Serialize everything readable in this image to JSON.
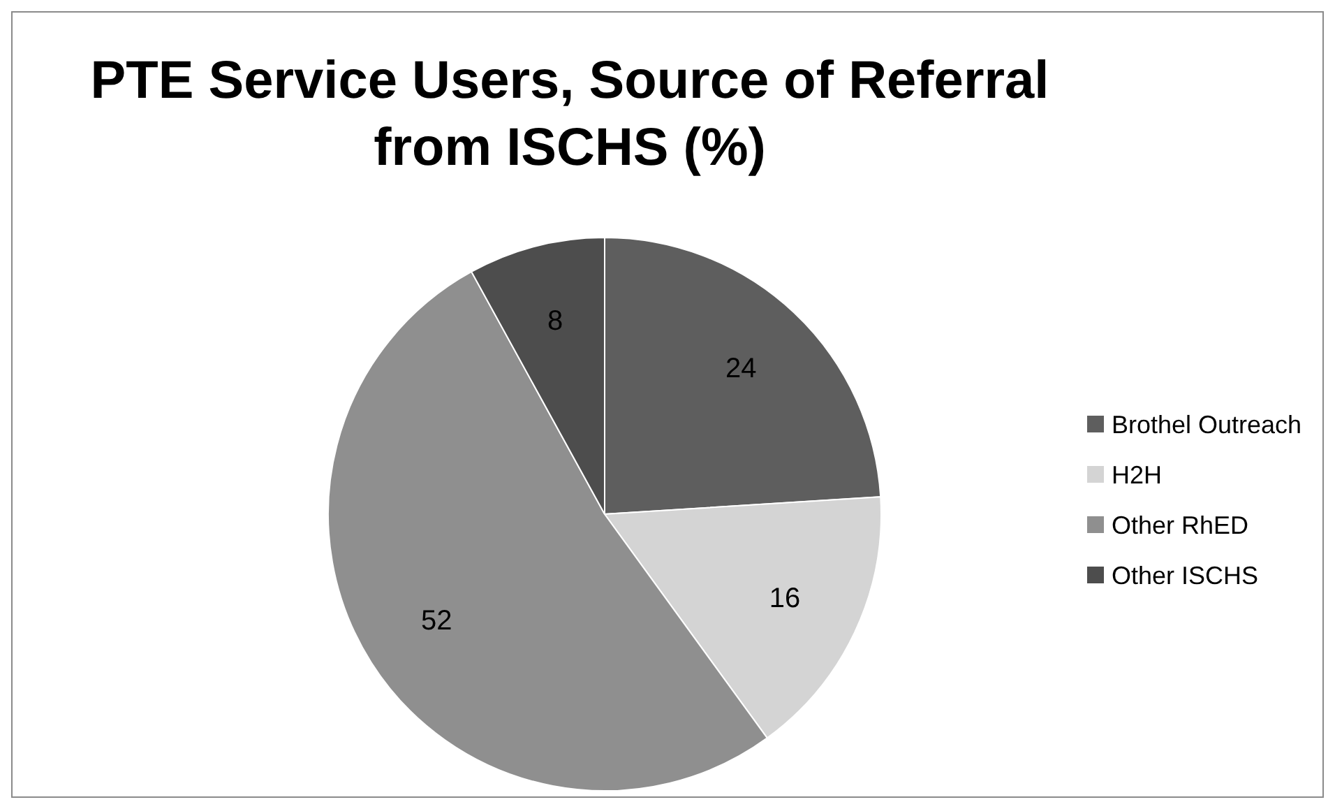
{
  "chart_data": {
    "type": "pie",
    "title": "PTE Service Users, Source of Referral from ISCHS (%)",
    "categories": [
      "Brothel Outreach",
      "H2H",
      "Other RhED",
      "Other ISCHS"
    ],
    "values": [
      24,
      16,
      52,
      8
    ],
    "colors": [
      "#5e5e5e",
      "#d4d4d4",
      "#8f8f8f",
      "#4d4d4d"
    ],
    "data_labels": true,
    "legend": "right"
  }
}
